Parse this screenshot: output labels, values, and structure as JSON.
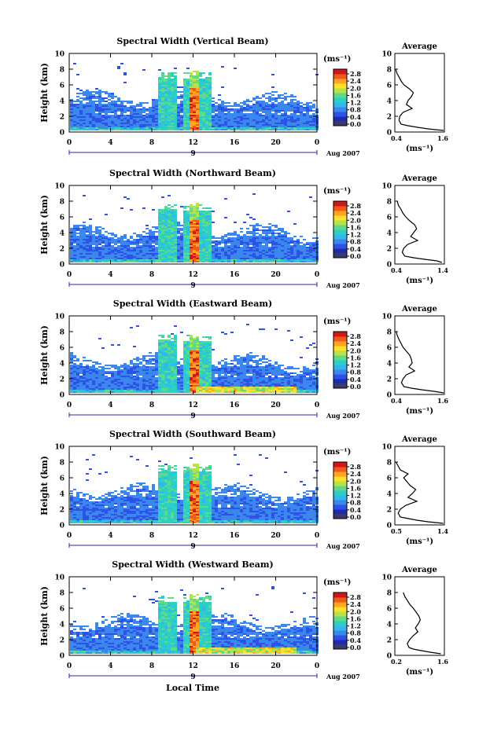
{
  "xlabel": "Local Time",
  "date_label": "Aug 2007",
  "day_tick": "9",
  "x_ticks": [
    "0",
    "4",
    "8",
    "12",
    "16",
    "20",
    "0"
  ],
  "y_ticks": [
    "0",
    "2",
    "4",
    "6",
    "8",
    "10"
  ],
  "ylabel": "Height (km)",
  "colorbar_unit": "(ms⁻¹)",
  "colorbar_ticks": [
    "0.0",
    "0.4",
    "0.8",
    "1.2",
    "1.6",
    "2.0",
    "2.4",
    "2.8"
  ],
  "avg_title": "Average",
  "avg_xlabel": "(ms⁻¹)",
  "colors": {
    "scale": [
      "#1e2bb0",
      "#2f52e6",
      "#3a87ee",
      "#31b7ee",
      "#2ad0c6",
      "#5fd98a",
      "#b6e34a",
      "#ffe12a",
      "#ffa51e",
      "#f35a1a",
      "#d01818"
    ],
    "colorbar_bottom": "#3a3a6e"
  },
  "chart_data": [
    {
      "type": "heatmap",
      "title": "Spectral Width (Vertical Beam)",
      "x_range": [
        0,
        24
      ],
      "y_range": [
        0,
        10
      ],
      "z_range": [
        0.0,
        2.8
      ],
      "average_profile": {
        "xlim": [
          0.4,
          1.6
        ],
        "x_ticks": [
          "0.4",
          "1.6"
        ],
        "height": [
          0.2,
          0.4,
          0.6,
          0.8,
          1.0,
          1.5,
          2.0,
          2.5,
          3.0,
          3.5,
          4.0,
          4.5,
          5.0,
          5.5,
          6.0,
          6.5,
          7.0,
          7.5,
          8.0
        ],
        "width": [
          1.58,
          1.2,
          0.95,
          0.72,
          0.55,
          0.5,
          0.52,
          0.6,
          0.82,
          0.68,
          0.72,
          0.8,
          0.85,
          0.75,
          0.62,
          0.55,
          0.5,
          0.45,
          0.42
        ]
      }
    },
    {
      "type": "heatmap",
      "title": "Spectral Width (Northward Beam)",
      "x_range": [
        0,
        24
      ],
      "y_range": [
        0,
        10
      ],
      "z_range": [
        0.0,
        2.8
      ],
      "average_profile": {
        "xlim": [
          0.4,
          1.4
        ],
        "x_ticks": [
          "0.4",
          "1.4"
        ],
        "height": [
          0.2,
          0.4,
          0.6,
          0.8,
          1.0,
          1.5,
          2.0,
          2.5,
          3.0,
          3.5,
          4.0,
          4.5,
          5.0,
          5.5,
          6.0,
          6.5,
          7.0,
          7.5,
          8.0
        ],
        "width": [
          1.35,
          1.25,
          1.0,
          0.78,
          0.6,
          0.55,
          0.58,
          0.66,
          0.86,
          0.72,
          0.78,
          0.84,
          0.8,
          0.7,
          0.62,
          0.56,
          0.52,
          0.47,
          0.45
        ]
      }
    },
    {
      "type": "heatmap",
      "title": "Spectral Width (Eastward Beam)",
      "x_range": [
        0,
        24
      ],
      "y_range": [
        0,
        10
      ],
      "z_range": [
        0.0,
        2.8
      ],
      "average_profile": {
        "xlim": [
          0.4,
          1.6
        ],
        "x_ticks": [
          "0.4",
          "1.6"
        ],
        "height": [
          0.2,
          0.4,
          0.6,
          0.8,
          1.0,
          1.5,
          2.0,
          2.5,
          3.0,
          3.5,
          4.0,
          4.5,
          5.0,
          5.5,
          6.0,
          6.5,
          7.0,
          7.5,
          8.0
        ],
        "width": [
          1.58,
          1.35,
          1.05,
          0.8,
          0.62,
          0.56,
          0.6,
          0.68,
          0.88,
          0.74,
          0.82,
          0.8,
          0.76,
          0.68,
          0.6,
          0.55,
          0.5,
          0.46,
          0.43
        ]
      }
    },
    {
      "type": "heatmap",
      "title": "Spectral Width (Southward Beam)",
      "x_range": [
        0,
        24
      ],
      "y_range": [
        0,
        10
      ],
      "z_range": [
        0.0,
        2.8
      ],
      "average_profile": {
        "xlim": [
          0.5,
          1.4
        ],
        "x_ticks": [
          "0.5",
          "1.4"
        ],
        "height": [
          0.2,
          0.4,
          0.6,
          0.8,
          1.0,
          1.5,
          2.0,
          2.5,
          3.0,
          3.5,
          4.0,
          4.5,
          5.0,
          5.5,
          6.0,
          6.5,
          7.0,
          7.5,
          8.0
        ],
        "width": [
          1.38,
          1.1,
          0.9,
          0.75,
          0.6,
          0.56,
          0.6,
          0.7,
          0.9,
          0.74,
          0.82,
          0.88,
          0.78,
          0.72,
          0.66,
          0.74,
          0.6,
          0.56,
          0.52
        ]
      }
    },
    {
      "type": "heatmap",
      "title": "Spectral Width (Westward Beam)",
      "x_range": [
        0,
        24
      ],
      "y_range": [
        0,
        10
      ],
      "z_range": [
        0.0,
        2.8
      ],
      "average_profile": {
        "xlim": [
          0.2,
          1.6
        ],
        "x_ticks": [
          "0.2",
          "1.6"
        ],
        "height": [
          0.2,
          0.4,
          0.6,
          0.8,
          1.0,
          1.5,
          2.0,
          2.5,
          3.0,
          3.5,
          4.0,
          4.5,
          5.0,
          5.5,
          6.0,
          6.5,
          7.0,
          7.5,
          8.0
        ],
        "width": [
          1.5,
          1.2,
          0.95,
          0.72,
          0.6,
          0.55,
          0.62,
          0.72,
          0.85,
          0.78,
          0.86,
          0.92,
          0.88,
          0.8,
          0.72,
          0.62,
          0.55,
          0.48,
          0.44
        ]
      }
    }
  ]
}
